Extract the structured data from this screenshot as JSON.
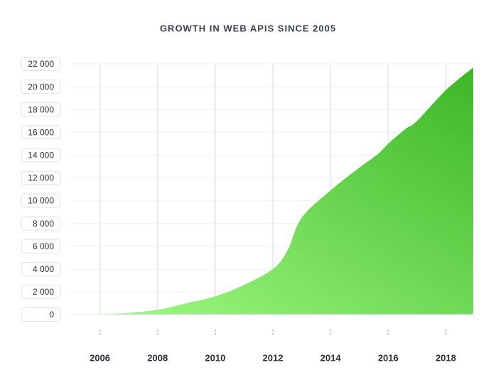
{
  "chart_data": {
    "type": "area",
    "title": "GROWTH IN WEB APIS SINCE 2005",
    "x": [
      2005,
      2006,
      2007,
      2008,
      2009,
      2010,
      2011,
      2012,
      2012.5,
      2013,
      2014,
      2015,
      2015.6,
      2016,
      2016.6,
      2017,
      2018,
      2018.95
    ],
    "series": [
      {
        "colors": [
          "#a3fc86",
          "#3db626"
        ],
        "values": [
          0,
          30,
          150,
          420,
          1000,
          1600,
          2600,
          4000,
          5600,
          8500,
          10900,
          12900,
          14000,
          15000,
          16300,
          17000,
          19700,
          21700
        ]
      }
    ],
    "xlim": [
      2005,
      2019
    ],
    "xticks": [
      2006,
      2008,
      2010,
      2012,
      2014,
      2016,
      2018
    ],
    "ylim": [
      0,
      22000
    ],
    "yticks": [
      0,
      {
        "value": 2000,
        "label": "2 000"
      },
      {
        "value": 4000,
        "label": "4 000"
      },
      {
        "value": 6000,
        "label": "6 000"
      },
      {
        "value": 8000,
        "label": "8 000"
      },
      {
        "value": 10000,
        "label": "10 000"
      },
      {
        "value": 12000,
        "label": "12 000"
      },
      {
        "value": 14000,
        "label": "14 000"
      },
      {
        "value": 16000,
        "label": "16 000"
      },
      {
        "value": 18000,
        "label": "18 000"
      },
      {
        "value": 20000,
        "label": "20 000"
      },
      {
        "value": 22000,
        "label": "22 000"
      }
    ],
    "grid": true
  }
}
